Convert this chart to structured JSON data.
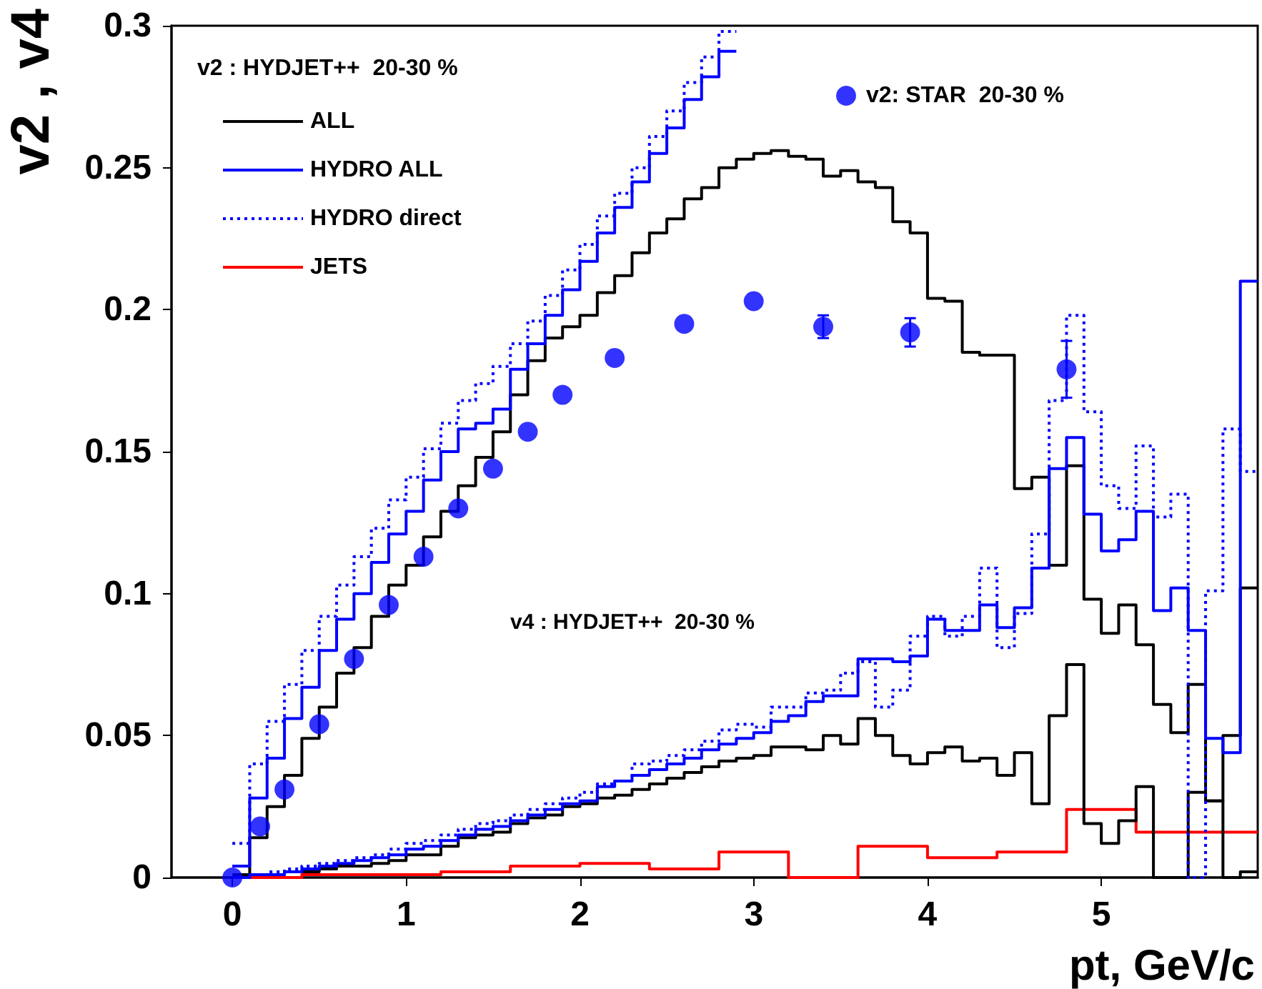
{
  "chart_data": {
    "type": "step",
    "xlabel": "pt, GeV/c",
    "ylabel": "v2 , v4",
    "legend_title": "v2 : HYDJET++  20-30 %",
    "xlim": [
      -0.35,
      5.9
    ],
    "xticks": [
      0,
      1,
      2,
      3,
      4,
      5
    ],
    "ylim": [
      0,
      0.3
    ],
    "yticks": [
      0,
      0.05,
      0.1,
      0.15,
      0.2,
      0.25,
      0.3
    ],
    "grid": false,
    "legend": "top left",
    "x": [
      0,
      0.1,
      0.2,
      0.3,
      0.4,
      0.5,
      0.6,
      0.7,
      0.8,
      0.9,
      1.0,
      1.1,
      1.2,
      1.3,
      1.4,
      1.5,
      1.6,
      1.7,
      1.8,
      1.9,
      2.0,
      2.1,
      2.2,
      2.3,
      2.4,
      2.5,
      2.6,
      2.7,
      2.8,
      2.9,
      3.0,
      3.1,
      3.2,
      3.3,
      3.4,
      3.5,
      3.6,
      3.7,
      3.8,
      3.9,
      4.0,
      4.1,
      4.2,
      4.3,
      4.4,
      4.5,
      4.6,
      4.7,
      4.8,
      4.9,
      5.0,
      5.1,
      5.2,
      5.3,
      5.4,
      5.5,
      5.6,
      5.7,
      5.8,
      5.9
    ],
    "annotations": [
      "v4 : HYDJET++  20-30 %"
    ],
    "series": [
      {
        "name": "ALL",
        "color": "#000000",
        "line_style": "solid",
        "values": [
          0.001,
          0.014,
          0.025,
          0.036,
          0.049,
          0.06,
          0.072,
          0.081,
          0.092,
          0.103,
          0.11,
          0.12,
          0.129,
          0.138,
          0.148,
          0.157,
          0.17,
          0.182,
          0.19,
          0.194,
          0.198,
          0.206,
          0.212,
          0.22,
          0.227,
          0.232,
          0.239,
          0.243,
          0.25,
          0.253,
          0.255,
          0.256,
          0.254,
          0.253,
          0.247,
          0.249,
          0.245,
          0.243,
          0.231,
          0.227,
          0.204,
          0.203,
          0.185,
          0.184,
          0.184,
          0.137,
          0.141,
          0.11,
          0.145,
          0.098,
          0.086,
          0.096,
          0.082,
          0.061,
          0.051,
          0.068,
          0.027,
          0.05,
          0.102,
          0.102
        ]
      },
      {
        "name": "HYDRO ALL",
        "color": "#0000ff",
        "line_style": "solid",
        "x": [
          0,
          0.1,
          0.2,
          0.3,
          0.4,
          0.5,
          0.6,
          0.7,
          0.8,
          0.9,
          1.0,
          1.1,
          1.2,
          1.3,
          1.4,
          1.5,
          1.6,
          1.7,
          1.8,
          1.9,
          2.0,
          2.1,
          2.2,
          2.3,
          2.4,
          2.5,
          2.6,
          2.7,
          2.8,
          2.9
        ],
        "values": [
          0.004,
          0.028,
          0.042,
          0.056,
          0.067,
          0.08,
          0.091,
          0.1,
          0.111,
          0.121,
          0.129,
          0.14,
          0.15,
          0.158,
          0.16,
          0.165,
          0.179,
          0.188,
          0.198,
          0.207,
          0.217,
          0.227,
          0.236,
          0.245,
          0.255,
          0.264,
          0.274,
          0.282,
          0.291,
          0.291
        ]
      },
      {
        "name": "HYDRO direct",
        "color": "#0000ff",
        "line_style": "dotted",
        "x": [
          0,
          0.1,
          0.2,
          0.3,
          0.4,
          0.5,
          0.6,
          0.7,
          0.8,
          0.9,
          1.0,
          1.1,
          1.2,
          1.3,
          1.4,
          1.5,
          1.6,
          1.7,
          1.8,
          1.9,
          2.0,
          2.1,
          2.2,
          2.3,
          2.4,
          2.5,
          2.6,
          2.7,
          2.8,
          2.9
        ],
        "values": [
          0.012,
          0.04,
          0.055,
          0.068,
          0.08,
          0.092,
          0.103,
          0.113,
          0.123,
          0.133,
          0.141,
          0.151,
          0.16,
          0.168,
          0.174,
          0.18,
          0.188,
          0.196,
          0.205,
          0.214,
          0.223,
          0.233,
          0.241,
          0.25,
          0.261,
          0.27,
          0.28,
          0.289,
          0.298,
          0.298
        ]
      },
      {
        "name": "JETS",
        "color": "#ff0000",
        "line_style": "solid",
        "x": [
          0,
          0.4,
          0.8,
          1.2,
          1.6,
          2.0,
          2.4,
          2.8,
          3.2,
          3.6,
          4.0,
          4.4,
          4.8,
          5.2,
          5.6,
          5.9
        ],
        "values": [
          0,
          0.001,
          0.001,
          0.002,
          0.004,
          0.005,
          0.003,
          0.009,
          0,
          0.011,
          0.007,
          0.009,
          0.024,
          0.016,
          0.016,
          0.016
        ]
      },
      {
        "color": "#000000",
        "line_style": "solid",
        "values": [
          0,
          0.001,
          0.001,
          0.002,
          0.002,
          0.003,
          0.004,
          0.004,
          0.005,
          0.006,
          0.008,
          0.008,
          0.011,
          0.014,
          0.015,
          0.016,
          0.019,
          0.021,
          0.022,
          0.025,
          0.026,
          0.028,
          0.029,
          0.031,
          0.033,
          0.035,
          0.037,
          0.039,
          0.041,
          0.042,
          0.043,
          0.046,
          0.046,
          0.045,
          0.05,
          0.047,
          0.056,
          0.05,
          0.043,
          0.04,
          0.044,
          0.046,
          0.041,
          0.042,
          0.036,
          0.044,
          0.026,
          0.057,
          0.075,
          0.019,
          0.012,
          0.02,
          0.032,
          0,
          0,
          0.03,
          0.027,
          0,
          0.002,
          0.002
        ]
      },
      {
        "color": "#0000ff",
        "line_style": "solid",
        "values": [
          0,
          0.001,
          0.001,
          0.002,
          0.003,
          0.004,
          0.005,
          0.006,
          0.007,
          0.008,
          0.01,
          0.011,
          0.013,
          0.015,
          0.017,
          0.018,
          0.02,
          0.022,
          0.024,
          0.026,
          0.027,
          0.032,
          0.034,
          0.036,
          0.038,
          0.04,
          0.042,
          0.045,
          0.047,
          0.049,
          0.051,
          0.055,
          0.057,
          0.062,
          0.064,
          0.064,
          0.077,
          0.077,
          0.076,
          0.078,
          0.091,
          0.087,
          0.087,
          0.096,
          0.088,
          0.095,
          0.109,
          0.144,
          0.155,
          0.128,
          0.115,
          0.119,
          0.129,
          0.094,
          0.102,
          0.087,
          0.049,
          0.044,
          0.21,
          0.21
        ]
      },
      {
        "color": "#0000ff",
        "line_style": "dotted",
        "values": [
          0,
          0.001,
          0.002,
          0.003,
          0.004,
          0.005,
          0.006,
          0.007,
          0.008,
          0.01,
          0.012,
          0.013,
          0.015,
          0.017,
          0.019,
          0.02,
          0.022,
          0.024,
          0.026,
          0.028,
          0.03,
          0.033,
          0.034,
          0.04,
          0.041,
          0.043,
          0.045,
          0.048,
          0.052,
          0.054,
          0.053,
          0.06,
          0.06,
          0.065,
          0.066,
          0.072,
          0.076,
          0.06,
          0.066,
          0.085,
          0.092,
          0.085,
          0.092,
          0.109,
          0.081,
          0.093,
          0.121,
          0.168,
          0.198,
          0.164,
          0.138,
          0.13,
          0.152,
          0.127,
          0.135,
          0,
          0.101,
          0.158,
          0.143,
          0.143
        ]
      },
      {
        "type": "scatter",
        "name": "v2: STAR  20-30 %",
        "color": "#0000ff",
        "marker": "circle",
        "x": [
          0,
          0.16,
          0.3,
          0.5,
          0.7,
          0.9,
          1.1,
          1.3,
          1.5,
          1.7,
          1.9,
          2.2,
          2.6,
          3.0,
          3.4,
          3.9,
          4.8
        ],
        "values": [
          0,
          0.018,
          0.031,
          0.054,
          0.077,
          0.096,
          0.113,
          0.13,
          0.144,
          0.157,
          0.17,
          0.183,
          0.195,
          0.203,
          0.194,
          0.192,
          0.179
        ],
        "errors": [
          null,
          null,
          null,
          null,
          null,
          null,
          null,
          null,
          null,
          null,
          null,
          null,
          null,
          null,
          0.004,
          0.005,
          0.01
        ]
      }
    ]
  }
}
